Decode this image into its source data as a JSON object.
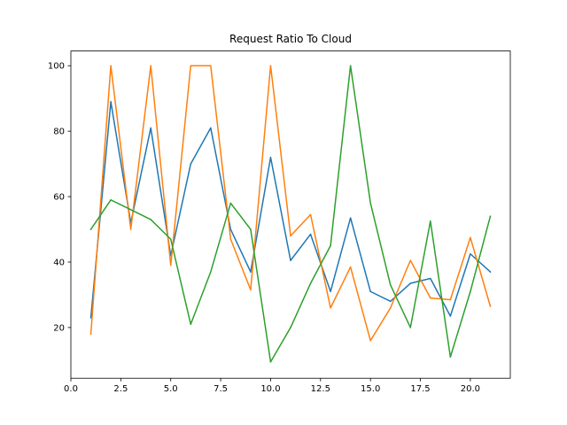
{
  "chart_data": {
    "type": "line",
    "title": "Request Ratio To Cloud",
    "xlabel": "",
    "ylabel": "",
    "xlim": [
      0,
      22
    ],
    "ylim": [
      4.5,
      104.5
    ],
    "x_ticks": [
      0.0,
      2.5,
      5.0,
      7.5,
      10.0,
      12.5,
      15.0,
      17.5,
      20.0
    ],
    "x_tick_labels": [
      "0.0",
      "2.5",
      "5.0",
      "7.5",
      "10.0",
      "12.5",
      "15.0",
      "17.5",
      "20.0"
    ],
    "y_ticks": [
      20,
      40,
      60,
      80,
      100
    ],
    "y_tick_labels": [
      "20",
      "40",
      "60",
      "80",
      "100"
    ],
    "grid": false,
    "legend": "none",
    "x": [
      1,
      2,
      3,
      4,
      5,
      6,
      7,
      8,
      9,
      10,
      11,
      12,
      13,
      14,
      15,
      16,
      17,
      18,
      19,
      20,
      21
    ],
    "series": [
      {
        "color": "#1f77b4",
        "values": [
          23,
          89,
          52,
          81,
          42,
          70,
          81,
          50,
          37,
          72,
          40.5,
          48.5,
          31,
          53.5,
          31,
          28,
          33.5,
          35,
          23.5,
          42.5,
          37
        ]
      },
      {
        "color": "#ff7f0e",
        "values": [
          18,
          100,
          50,
          100,
          39,
          100,
          100,
          47,
          31.5,
          100,
          48,
          54.5,
          26,
          38.5,
          16,
          26,
          40.5,
          29,
          28.5,
          47.5,
          26.5
        ]
      },
      {
        "color": "#2ca02c",
        "values": [
          50,
          59,
          56,
          53,
          47,
          21,
          37,
          58,
          50,
          9.5,
          20,
          33.5,
          45,
          100,
          58,
          33,
          20,
          52.5,
          11,
          31,
          54
        ]
      }
    ]
  }
}
